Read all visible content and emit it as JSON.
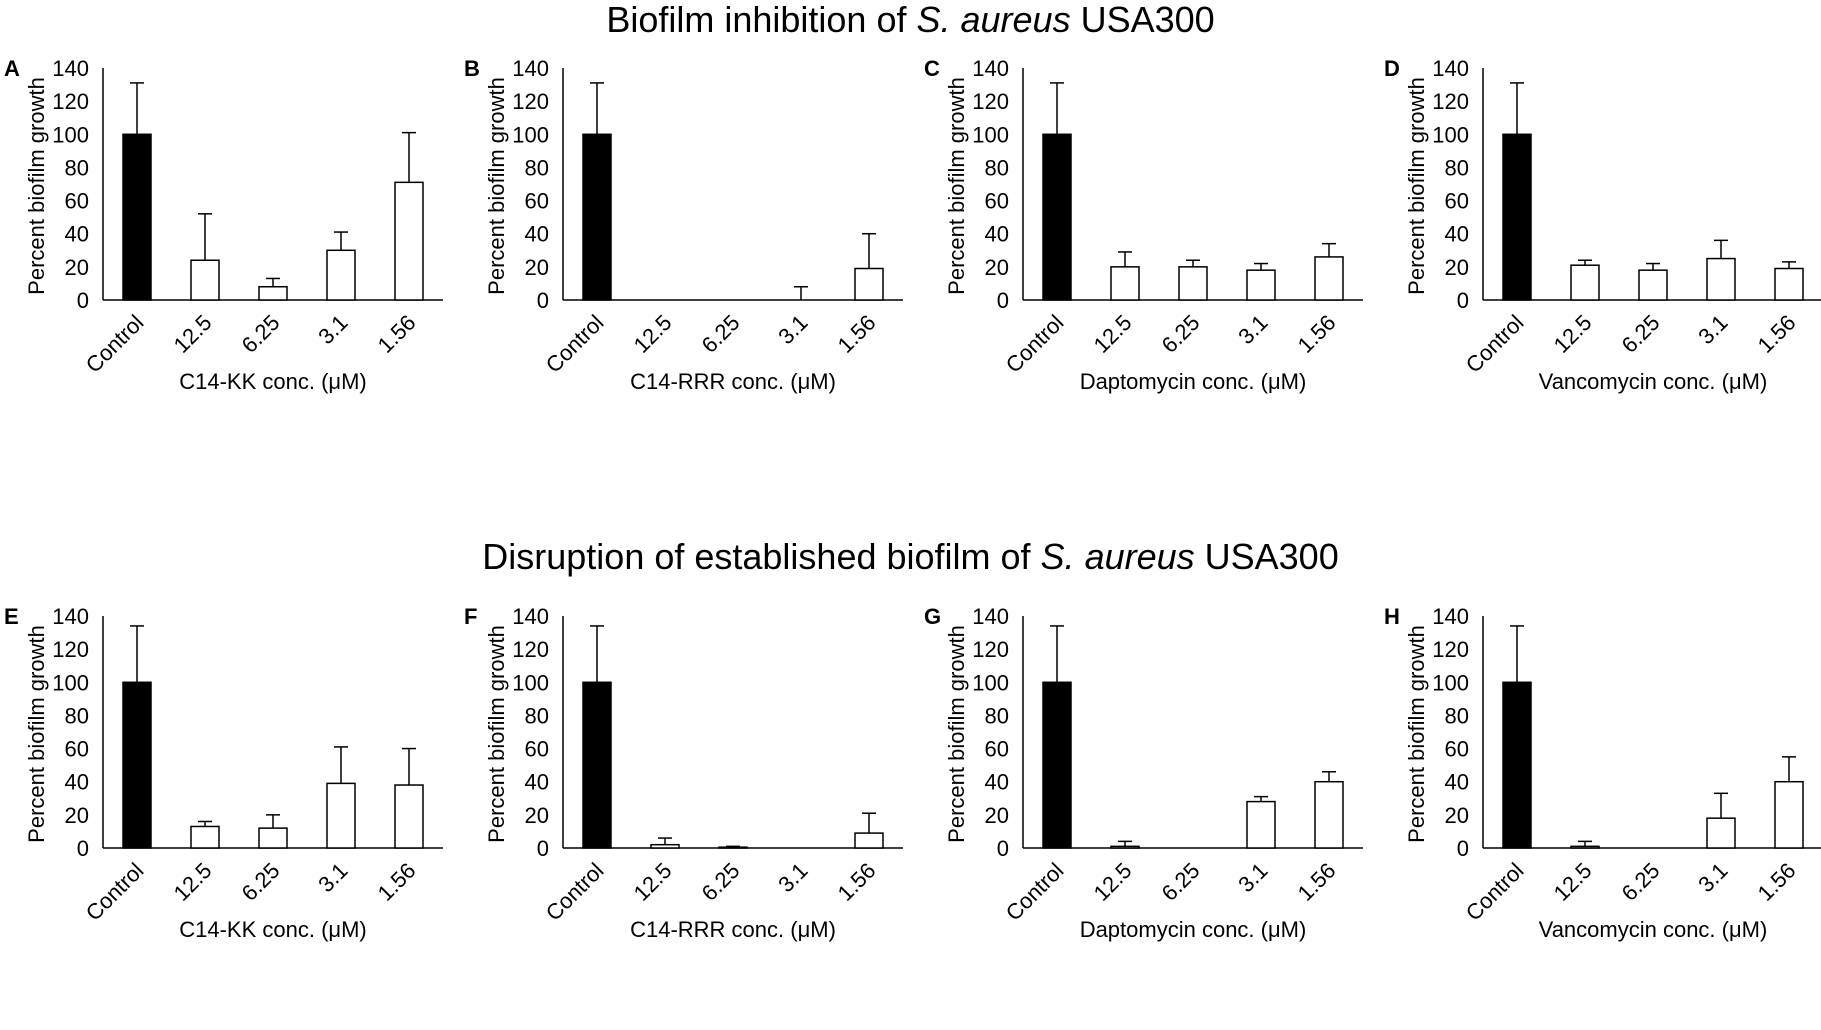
{
  "titles": {
    "top_prefix": "Biofilm inhibition of ",
    "top_italic": "S. aureus",
    "top_suffix": " USA300",
    "bottom_prefix": "Disruption of established biofilm of ",
    "bottom_italic": "S. aureus",
    "bottom_suffix": " USA300"
  },
  "colors": {
    "control_fill": "#000000",
    "treatment_fill": "#ffffff",
    "stroke": "#000000"
  },
  "chart_data": [
    {
      "panel": "A",
      "type": "bar",
      "ylabel": "Percent biofilm growth",
      "xlabel": "C14-KK conc. (μM)",
      "ylim": [
        0,
        140
      ],
      "yticks": [
        0,
        20,
        40,
        60,
        80,
        100,
        120,
        140
      ],
      "categories": [
        "Control",
        "12.5",
        "6.25",
        "3.1",
        "1.56"
      ],
      "values": [
        100,
        24,
        8,
        30,
        71
      ],
      "errors": [
        31,
        28,
        5,
        11,
        30
      ]
    },
    {
      "panel": "B",
      "type": "bar",
      "ylabel": "Percent biofilm growth",
      "xlabel": "C14-RRR conc. (μM)",
      "ylim": [
        0,
        140
      ],
      "yticks": [
        0,
        20,
        40,
        60,
        80,
        100,
        120,
        140
      ],
      "categories": [
        "Control",
        "12.5",
        "6.25",
        "3.1",
        "1.56"
      ],
      "values": [
        100,
        0,
        0,
        0,
        19
      ],
      "errors": [
        31,
        0,
        0,
        8,
        21
      ]
    },
    {
      "panel": "C",
      "type": "bar",
      "ylabel": "Percent biofilm growth",
      "xlabel": "Daptomycin conc. (μM)",
      "ylim": [
        0,
        140
      ],
      "yticks": [
        0,
        20,
        40,
        60,
        80,
        100,
        120,
        140
      ],
      "categories": [
        "Control",
        "12.5",
        "6.25",
        "3.1",
        "1.56"
      ],
      "values": [
        100,
        20,
        20,
        18,
        26
      ],
      "errors": [
        31,
        9,
        4,
        4,
        8
      ]
    },
    {
      "panel": "D",
      "type": "bar",
      "ylabel": "Percent biofilm growth",
      "xlabel": "Vancomycin conc. (μM)",
      "ylim": [
        0,
        140
      ],
      "yticks": [
        0,
        20,
        40,
        60,
        80,
        100,
        120,
        140
      ],
      "categories": [
        "Control",
        "12.5",
        "6.25",
        "3.1",
        "1.56"
      ],
      "values": [
        100,
        21,
        18,
        25,
        19
      ],
      "errors": [
        31,
        3,
        4,
        11,
        4
      ]
    },
    {
      "panel": "E",
      "type": "bar",
      "ylabel": "Percent biofilm growth",
      "xlabel": "C14-KK conc. (μM)",
      "ylim": [
        0,
        140
      ],
      "yticks": [
        0,
        20,
        40,
        60,
        80,
        100,
        120,
        140
      ],
      "categories": [
        "Control",
        "12.5",
        "6.25",
        "3.1",
        "1.56"
      ],
      "values": [
        100,
        13,
        12,
        39,
        38
      ],
      "errors": [
        34,
        3,
        8,
        22,
        22
      ]
    },
    {
      "panel": "F",
      "type": "bar",
      "ylabel": "Percent biofilm growth",
      "xlabel": "C14-RRR conc. (μM)",
      "ylim": [
        0,
        140
      ],
      "yticks": [
        0,
        20,
        40,
        60,
        80,
        100,
        120,
        140
      ],
      "categories": [
        "Control",
        "12.5",
        "6.25",
        "3.1",
        "1.56"
      ],
      "values": [
        100,
        2,
        0.5,
        0,
        9
      ],
      "errors": [
        34,
        4,
        0.5,
        0,
        12
      ]
    },
    {
      "panel": "G",
      "type": "bar",
      "ylabel": "Percent biofilm growth",
      "xlabel": "Daptomycin conc. (μM)",
      "ylim": [
        0,
        140
      ],
      "yticks": [
        0,
        20,
        40,
        60,
        80,
        100,
        120,
        140
      ],
      "categories": [
        "Control",
        "12.5",
        "6.25",
        "3.1",
        "1.56"
      ],
      "values": [
        100,
        1,
        0,
        28,
        40
      ],
      "errors": [
        34,
        3,
        0,
        3,
        6
      ]
    },
    {
      "panel": "H",
      "type": "bar",
      "ylabel": "Percent biofilm growth",
      "xlabel": "Vancomycin conc. (μM)",
      "ylim": [
        0,
        140
      ],
      "yticks": [
        0,
        20,
        40,
        60,
        80,
        100,
        120,
        140
      ],
      "categories": [
        "Control",
        "12.5",
        "6.25",
        "3.1",
        "1.56"
      ],
      "values": [
        100,
        1,
        0,
        18,
        40
      ],
      "errors": [
        34,
        3,
        0,
        15,
        15
      ]
    }
  ]
}
